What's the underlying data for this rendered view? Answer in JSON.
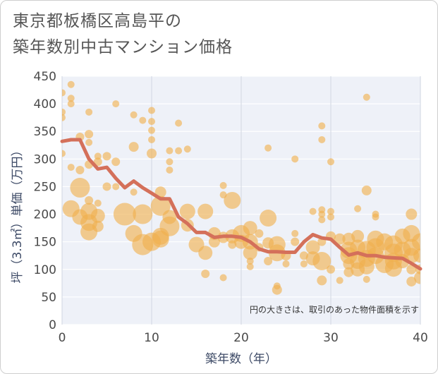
{
  "chart_data": {
    "type": "scatter",
    "title_lines": [
      "東京都板橋区高島平の",
      "築年数別中古マンション価格"
    ],
    "xlabel": "築年数（年）",
    "ylabel": "坪（3.3㎡）単価（万円）",
    "xlim": [
      0,
      40
    ],
    "ylim": [
      0,
      450
    ],
    "xticks": [
      "0",
      "10",
      "20",
      "30",
      "40"
    ],
    "yticks": [
      "0",
      "50",
      "100",
      "150",
      "200",
      "250",
      "300",
      "350",
      "400",
      "450"
    ],
    "note": "円の大きさは、取引のあった物件面積を示す",
    "grid": true,
    "colors": {
      "bubble": "#f0b04e",
      "line": "#d4705a",
      "plot_bg": "#eef1f8",
      "grid": "#ffffff"
    },
    "trend_line": {
      "x": [
        0,
        1,
        2,
        3,
        4,
        5,
        6,
        7,
        8,
        9,
        10,
        11,
        12,
        13,
        14,
        15,
        16,
        17,
        18,
        19,
        20,
        21,
        22,
        23,
        24,
        25,
        26,
        27,
        28,
        29,
        30,
        31,
        32,
        33,
        34,
        35,
        36,
        37,
        38,
        39,
        40
      ],
      "y": [
        332,
        335,
        335,
        300,
        282,
        285,
        265,
        248,
        260,
        248,
        238,
        228,
        228,
        195,
        183,
        167,
        167,
        158,
        160,
        160,
        158,
        150,
        137,
        132,
        132,
        131,
        131,
        150,
        163,
        157,
        155,
        140,
        126,
        130,
        125,
        125,
        122,
        121,
        120,
        111,
        101
      ]
    },
    "points": [
      {
        "x": 0,
        "y": 420,
        "s": 5
      },
      {
        "x": 0,
        "y": 385,
        "s": 5
      },
      {
        "x": 0,
        "y": 375,
        "s": 5
      },
      {
        "x": 0,
        "y": 310,
        "s": 5
      },
      {
        "x": 1,
        "y": 435,
        "s": 5
      },
      {
        "x": 1,
        "y": 410,
        "s": 5
      },
      {
        "x": 1,
        "y": 400,
        "s": 5
      },
      {
        "x": 1,
        "y": 285,
        "s": 5
      },
      {
        "x": 1,
        "y": 210,
        "s": 12
      },
      {
        "x": 2,
        "y": 248,
        "s": 14
      },
      {
        "x": 2,
        "y": 340,
        "s": 6
      },
      {
        "x": 2,
        "y": 280,
        "s": 6
      },
      {
        "x": 2,
        "y": 195,
        "s": 11
      },
      {
        "x": 3,
        "y": 385,
        "s": 5
      },
      {
        "x": 3,
        "y": 345,
        "s": 6
      },
      {
        "x": 3,
        "y": 330,
        "s": 5
      },
      {
        "x": 3,
        "y": 290,
        "s": 6
      },
      {
        "x": 3,
        "y": 225,
        "s": 6
      },
      {
        "x": 3,
        "y": 205,
        "s": 12
      },
      {
        "x": 3,
        "y": 185,
        "s": 12
      },
      {
        "x": 3,
        "y": 168,
        "s": 12
      },
      {
        "x": 4,
        "y": 305,
        "s": 5
      },
      {
        "x": 4,
        "y": 295,
        "s": 6
      },
      {
        "x": 4,
        "y": 220,
        "s": 5
      },
      {
        "x": 4,
        "y": 197,
        "s": 10
      },
      {
        "x": 4,
        "y": 178,
        "s": 8
      },
      {
        "x": 5,
        "y": 305,
        "s": 6
      },
      {
        "x": 5,
        "y": 250,
        "s": 6
      },
      {
        "x": 6,
        "y": 400,
        "s": 5
      },
      {
        "x": 6,
        "y": 295,
        "s": 6
      },
      {
        "x": 6,
        "y": 250,
        "s": 5
      },
      {
        "x": 7,
        "y": 200,
        "s": 16
      },
      {
        "x": 8,
        "y": 380,
        "s": 5
      },
      {
        "x": 8,
        "y": 322,
        "s": 7
      },
      {
        "x": 8,
        "y": 240,
        "s": 5
      },
      {
        "x": 8,
        "y": 165,
        "s": 12
      },
      {
        "x": 9,
        "y": 370,
        "s": 5
      },
      {
        "x": 9,
        "y": 200,
        "s": 14
      },
      {
        "x": 9,
        "y": 145,
        "s": 15
      },
      {
        "x": 10,
        "y": 388,
        "s": 5
      },
      {
        "x": 10,
        "y": 368,
        "s": 5
      },
      {
        "x": 10,
        "y": 352,
        "s": 5
      },
      {
        "x": 10,
        "y": 335,
        "s": 5
      },
      {
        "x": 10,
        "y": 310,
        "s": 7
      },
      {
        "x": 10,
        "y": 150,
        "s": 13
      },
      {
        "x": 11,
        "y": 240,
        "s": 8
      },
      {
        "x": 11,
        "y": 215,
        "s": 14
      },
      {
        "x": 11,
        "y": 160,
        "s": 12
      },
      {
        "x": 11,
        "y": 155,
        "s": 12
      },
      {
        "x": 12,
        "y": 315,
        "s": 5
      },
      {
        "x": 12,
        "y": 295,
        "s": 5
      },
      {
        "x": 12,
        "y": 280,
        "s": 5
      },
      {
        "x": 12,
        "y": 195,
        "s": 10
      },
      {
        "x": 12,
        "y": 178,
        "s": 14
      },
      {
        "x": 13,
        "y": 365,
        "s": 5
      },
      {
        "x": 13,
        "y": 315,
        "s": 5
      },
      {
        "x": 14,
        "y": 318,
        "s": 5
      },
      {
        "x": 14,
        "y": 205,
        "s": 11
      },
      {
        "x": 14,
        "y": 180,
        "s": 9
      },
      {
        "x": 15,
        "y": 145,
        "s": 11
      },
      {
        "x": 16,
        "y": 205,
        "s": 11
      },
      {
        "x": 16,
        "y": 130,
        "s": 10
      },
      {
        "x": 16,
        "y": 92,
        "s": 6
      },
      {
        "x": 17,
        "y": 165,
        "s": 9
      },
      {
        "x": 17,
        "y": 150,
        "s": 8
      },
      {
        "x": 18,
        "y": 252,
        "s": 5
      },
      {
        "x": 18,
        "y": 235,
        "s": 5
      },
      {
        "x": 18,
        "y": 158,
        "s": 8
      },
      {
        "x": 18,
        "y": 85,
        "s": 5
      },
      {
        "x": 19,
        "y": 225,
        "s": 12
      },
      {
        "x": 19,
        "y": 160,
        "s": 10
      },
      {
        "x": 19,
        "y": 145,
        "s": 6
      },
      {
        "x": 20,
        "y": 165,
        "s": 12
      },
      {
        "x": 20,
        "y": 150,
        "s": 10
      },
      {
        "x": 21,
        "y": 175,
        "s": 10
      },
      {
        "x": 21,
        "y": 150,
        "s": 11
      },
      {
        "x": 21,
        "y": 130,
        "s": 10
      },
      {
        "x": 21,
        "y": 115,
        "s": 5
      },
      {
        "x": 21,
        "y": 105,
        "s": 5
      },
      {
        "x": 22,
        "y": 165,
        "s": 6
      },
      {
        "x": 22,
        "y": 140,
        "s": 6
      },
      {
        "x": 23,
        "y": 320,
        "s": 5
      },
      {
        "x": 23,
        "y": 193,
        "s": 12
      },
      {
        "x": 23,
        "y": 148,
        "s": 8
      },
      {
        "x": 23,
        "y": 115,
        "s": 6
      },
      {
        "x": 24,
        "y": 145,
        "s": 12
      },
      {
        "x": 24,
        "y": 130,
        "s": 12
      },
      {
        "x": 24,
        "y": 70,
        "s": 5
      },
      {
        "x": 24,
        "y": 63,
        "s": 7
      },
      {
        "x": 25,
        "y": 125,
        "s": 7
      },
      {
        "x": 25,
        "y": 110,
        "s": 5
      },
      {
        "x": 26,
        "y": 300,
        "s": 5
      },
      {
        "x": 26,
        "y": 165,
        "s": 5
      },
      {
        "x": 26,
        "y": 150,
        "s": 6
      },
      {
        "x": 27,
        "y": 125,
        "s": 6
      },
      {
        "x": 27,
        "y": 110,
        "s": 5
      },
      {
        "x": 28,
        "y": 205,
        "s": 5
      },
      {
        "x": 28,
        "y": 140,
        "s": 10
      },
      {
        "x": 28,
        "y": 120,
        "s": 10
      },
      {
        "x": 29,
        "y": 360,
        "s": 5
      },
      {
        "x": 29,
        "y": 335,
        "s": 5
      },
      {
        "x": 29,
        "y": 208,
        "s": 5
      },
      {
        "x": 29,
        "y": 200,
        "s": 5
      },
      {
        "x": 29,
        "y": 190,
        "s": 5
      },
      {
        "x": 29,
        "y": 150,
        "s": 6
      },
      {
        "x": 29,
        "y": 115,
        "s": 13
      },
      {
        "x": 29,
        "y": 80,
        "s": 7
      },
      {
        "x": 30,
        "y": 295,
        "s": 5
      },
      {
        "x": 30,
        "y": 205,
        "s": 5
      },
      {
        "x": 30,
        "y": 195,
        "s": 5
      },
      {
        "x": 30,
        "y": 160,
        "s": 7
      },
      {
        "x": 30,
        "y": 100,
        "s": 6
      },
      {
        "x": 31,
        "y": 155,
        "s": 8
      },
      {
        "x": 31,
        "y": 80,
        "s": 5
      },
      {
        "x": 32,
        "y": 155,
        "s": 9
      },
      {
        "x": 32,
        "y": 135,
        "s": 12
      },
      {
        "x": 32,
        "y": 125,
        "s": 12
      },
      {
        "x": 32,
        "y": 110,
        "s": 8
      },
      {
        "x": 32,
        "y": 95,
        "s": 7
      },
      {
        "x": 33,
        "y": 210,
        "s": 5
      },
      {
        "x": 33,
        "y": 160,
        "s": 9
      },
      {
        "x": 33,
        "y": 140,
        "s": 11
      },
      {
        "x": 33,
        "y": 115,
        "s": 11
      },
      {
        "x": 33,
        "y": 100,
        "s": 10
      },
      {
        "x": 34,
        "y": 412,
        "s": 5
      },
      {
        "x": 34,
        "y": 243,
        "s": 7
      },
      {
        "x": 34,
        "y": 135,
        "s": 13
      },
      {
        "x": 34,
        "y": 120,
        "s": 12
      },
      {
        "x": 34,
        "y": 105,
        "s": 11
      },
      {
        "x": 34,
        "y": 82,
        "s": 5
      },
      {
        "x": 35,
        "y": 200,
        "s": 5
      },
      {
        "x": 35,
        "y": 195,
        "s": 5
      },
      {
        "x": 35,
        "y": 155,
        "s": 12
      },
      {
        "x": 35,
        "y": 140,
        "s": 13
      },
      {
        "x": 35,
        "y": 125,
        "s": 12
      },
      {
        "x": 36,
        "y": 150,
        "s": 12
      },
      {
        "x": 36,
        "y": 110,
        "s": 13
      },
      {
        "x": 37,
        "y": 145,
        "s": 13
      },
      {
        "x": 37,
        "y": 130,
        "s": 13
      },
      {
        "x": 37,
        "y": 115,
        "s": 12
      },
      {
        "x": 37,
        "y": 102,
        "s": 12
      },
      {
        "x": 38,
        "y": 160,
        "s": 11
      },
      {
        "x": 38,
        "y": 135,
        "s": 12
      },
      {
        "x": 38,
        "y": 115,
        "s": 10
      },
      {
        "x": 39,
        "y": 200,
        "s": 8
      },
      {
        "x": 39,
        "y": 165,
        "s": 12
      },
      {
        "x": 39,
        "y": 140,
        "s": 12
      },
      {
        "x": 39,
        "y": 125,
        "s": 11
      },
      {
        "x": 39,
        "y": 100,
        "s": 7
      },
      {
        "x": 39,
        "y": 78,
        "s": 7
      },
      {
        "x": 40,
        "y": 150,
        "s": 12
      },
      {
        "x": 40,
        "y": 125,
        "s": 10
      },
      {
        "x": 40,
        "y": 100,
        "s": 7
      },
      {
        "x": 40,
        "y": 85,
        "s": 9
      }
    ]
  }
}
